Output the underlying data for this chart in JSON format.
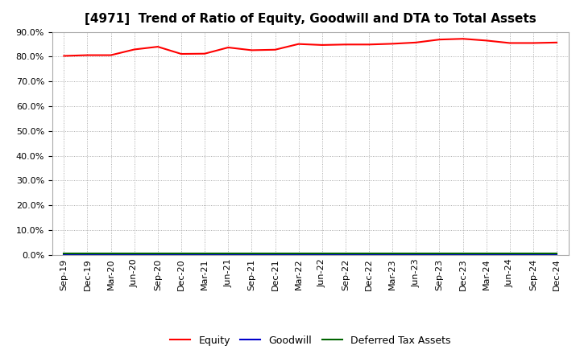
{
  "title": "[4971]  Trend of Ratio of Equity, Goodwill and DTA to Total Assets",
  "x_labels": [
    "Sep-19",
    "Dec-19",
    "Mar-20",
    "Jun-20",
    "Sep-20",
    "Dec-20",
    "Mar-21",
    "Jun-21",
    "Sep-21",
    "Dec-21",
    "Mar-22",
    "Jun-22",
    "Sep-22",
    "Dec-22",
    "Mar-23",
    "Jun-23",
    "Sep-23",
    "Dec-23",
    "Mar-24",
    "Jun-24",
    "Sep-24",
    "Dec-24"
  ],
  "equity": [
    0.803,
    0.806,
    0.806,
    0.829,
    0.84,
    0.811,
    0.812,
    0.837,
    0.826,
    0.828,
    0.851,
    0.847,
    0.849,
    0.849,
    0.852,
    0.857,
    0.869,
    0.872,
    0.865,
    0.855,
    0.855,
    0.857
  ],
  "goodwill": [
    0.0,
    0.0,
    0.0,
    0.0,
    0.0,
    0.0,
    0.0,
    0.0,
    0.0,
    0.0,
    0.0,
    0.0,
    0.0,
    0.0,
    0.0,
    0.0,
    0.0,
    0.0,
    0.0,
    0.0,
    0.0,
    0.0
  ],
  "dta": [
    0.005,
    0.005,
    0.005,
    0.005,
    0.005,
    0.005,
    0.005,
    0.005,
    0.005,
    0.005,
    0.005,
    0.005,
    0.005,
    0.005,
    0.005,
    0.005,
    0.005,
    0.005,
    0.005,
    0.005,
    0.005,
    0.005
  ],
  "equity_color": "#ff0000",
  "goodwill_color": "#0000cc",
  "dta_color": "#006400",
  "ylim": [
    0.0,
    0.9
  ],
  "yticks": [
    0.0,
    0.1,
    0.2,
    0.3,
    0.4,
    0.5,
    0.6,
    0.7,
    0.8,
    0.9
  ],
  "background_color": "#ffffff",
  "plot_bg_color": "#ffffff",
  "grid_color": "#999999",
  "legend_labels": [
    "Equity",
    "Goodwill",
    "Deferred Tax Assets"
  ],
  "title_fontsize": 11,
  "axis_fontsize": 8,
  "legend_fontsize": 9
}
